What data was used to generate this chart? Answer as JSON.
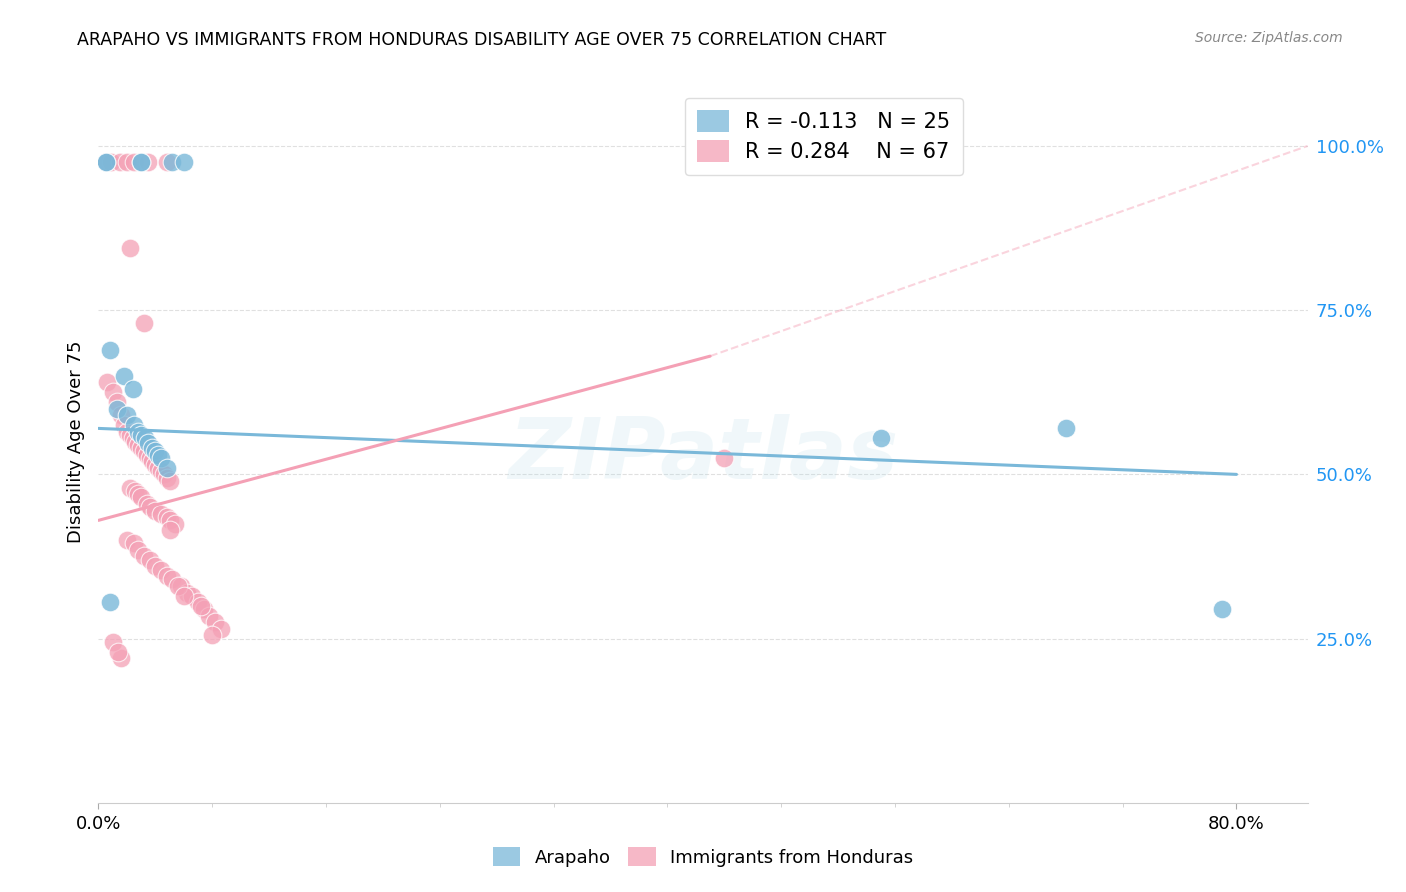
{
  "title": "ARAPAHO VS IMMIGRANTS FROM HONDURAS DISABILITY AGE OVER 75 CORRELATION CHART",
  "source": "Source: ZipAtlas.com",
  "ylabel": "Disability Age Over 75",
  "xlim": [
    0.0,
    0.85
  ],
  "ylim": [
    0.0,
    1.1
  ],
  "ytick_vals": [
    0.25,
    0.5,
    0.75,
    1.0
  ],
  "ytick_labels": [
    "25.0%",
    "50.0%",
    "75.0%",
    "100.0%"
  ],
  "xtick_vals": [
    0.0,
    0.8
  ],
  "xtick_labels": [
    "0.0%",
    "80.0%"
  ],
  "blue_R": -0.113,
  "blue_N": 25,
  "pink_R": 0.284,
  "pink_N": 67,
  "blue_color": "#7ab8d9",
  "pink_color": "#f4a0b5",
  "blue_scatter": [
    [
      0.005,
      0.975
    ],
    [
      0.005,
      0.975
    ],
    [
      0.03,
      0.975
    ],
    [
      0.03,
      0.975
    ],
    [
      0.052,
      0.975
    ],
    [
      0.06,
      0.975
    ],
    [
      0.008,
      0.69
    ],
    [
      0.018,
      0.65
    ],
    [
      0.024,
      0.63
    ],
    [
      0.013,
      0.6
    ],
    [
      0.02,
      0.59
    ],
    [
      0.025,
      0.575
    ],
    [
      0.028,
      0.565
    ],
    [
      0.03,
      0.56
    ],
    [
      0.033,
      0.555
    ],
    [
      0.035,
      0.548
    ],
    [
      0.038,
      0.54
    ],
    [
      0.04,
      0.535
    ],
    [
      0.042,
      0.53
    ],
    [
      0.044,
      0.525
    ],
    [
      0.048,
      0.51
    ],
    [
      0.008,
      0.305
    ],
    [
      0.55,
      0.555
    ],
    [
      0.68,
      0.57
    ],
    [
      0.79,
      0.295
    ]
  ],
  "pink_scatter": [
    [
      0.005,
      0.975
    ],
    [
      0.009,
      0.975
    ],
    [
      0.015,
      0.975
    ],
    [
      0.02,
      0.975
    ],
    [
      0.025,
      0.975
    ],
    [
      0.035,
      0.975
    ],
    [
      0.048,
      0.975
    ],
    [
      0.022,
      0.845
    ],
    [
      0.032,
      0.73
    ],
    [
      0.006,
      0.64
    ],
    [
      0.01,
      0.625
    ],
    [
      0.013,
      0.61
    ],
    [
      0.016,
      0.59
    ],
    [
      0.018,
      0.575
    ],
    [
      0.02,
      0.565
    ],
    [
      0.022,
      0.56
    ],
    [
      0.024,
      0.555
    ],
    [
      0.026,
      0.55
    ],
    [
      0.028,
      0.545
    ],
    [
      0.03,
      0.54
    ],
    [
      0.032,
      0.535
    ],
    [
      0.034,
      0.53
    ],
    [
      0.036,
      0.525
    ],
    [
      0.038,
      0.52
    ],
    [
      0.04,
      0.515
    ],
    [
      0.042,
      0.51
    ],
    [
      0.044,
      0.505
    ],
    [
      0.046,
      0.5
    ],
    [
      0.048,
      0.495
    ],
    [
      0.05,
      0.49
    ],
    [
      0.022,
      0.48
    ],
    [
      0.026,
      0.475
    ],
    [
      0.028,
      0.47
    ],
    [
      0.03,
      0.465
    ],
    [
      0.034,
      0.455
    ],
    [
      0.036,
      0.45
    ],
    [
      0.04,
      0.445
    ],
    [
      0.044,
      0.44
    ],
    [
      0.048,
      0.435
    ],
    [
      0.05,
      0.43
    ],
    [
      0.054,
      0.425
    ],
    [
      0.02,
      0.4
    ],
    [
      0.025,
      0.395
    ],
    [
      0.028,
      0.385
    ],
    [
      0.032,
      0.375
    ],
    [
      0.036,
      0.37
    ],
    [
      0.04,
      0.36
    ],
    [
      0.044,
      0.355
    ],
    [
      0.048,
      0.345
    ],
    [
      0.052,
      0.34
    ],
    [
      0.058,
      0.33
    ],
    [
      0.062,
      0.32
    ],
    [
      0.066,
      0.315
    ],
    [
      0.07,
      0.305
    ],
    [
      0.074,
      0.295
    ],
    [
      0.078,
      0.285
    ],
    [
      0.082,
      0.275
    ],
    [
      0.086,
      0.265
    ],
    [
      0.016,
      0.22
    ],
    [
      0.44,
      0.525
    ],
    [
      0.01,
      0.245
    ],
    [
      0.014,
      0.23
    ],
    [
      0.05,
      0.415
    ],
    [
      0.056,
      0.33
    ],
    [
      0.06,
      0.315
    ],
    [
      0.072,
      0.3
    ],
    [
      0.08,
      0.255
    ]
  ],
  "blue_line": [
    [
      0.0,
      0.57
    ],
    [
      0.8,
      0.5
    ]
  ],
  "pink_solid_line": [
    [
      0.0,
      0.43
    ],
    [
      0.43,
      0.68
    ]
  ],
  "pink_dash_line": [
    [
      0.43,
      0.68
    ],
    [
      0.85,
      1.0
    ]
  ],
  "watermark_text": "ZIPatlas",
  "legend_blue_label": "Arapaho",
  "legend_pink_label": "Immigrants from Honduras",
  "background_color": "#ffffff",
  "grid_color": "#e0e0e0"
}
